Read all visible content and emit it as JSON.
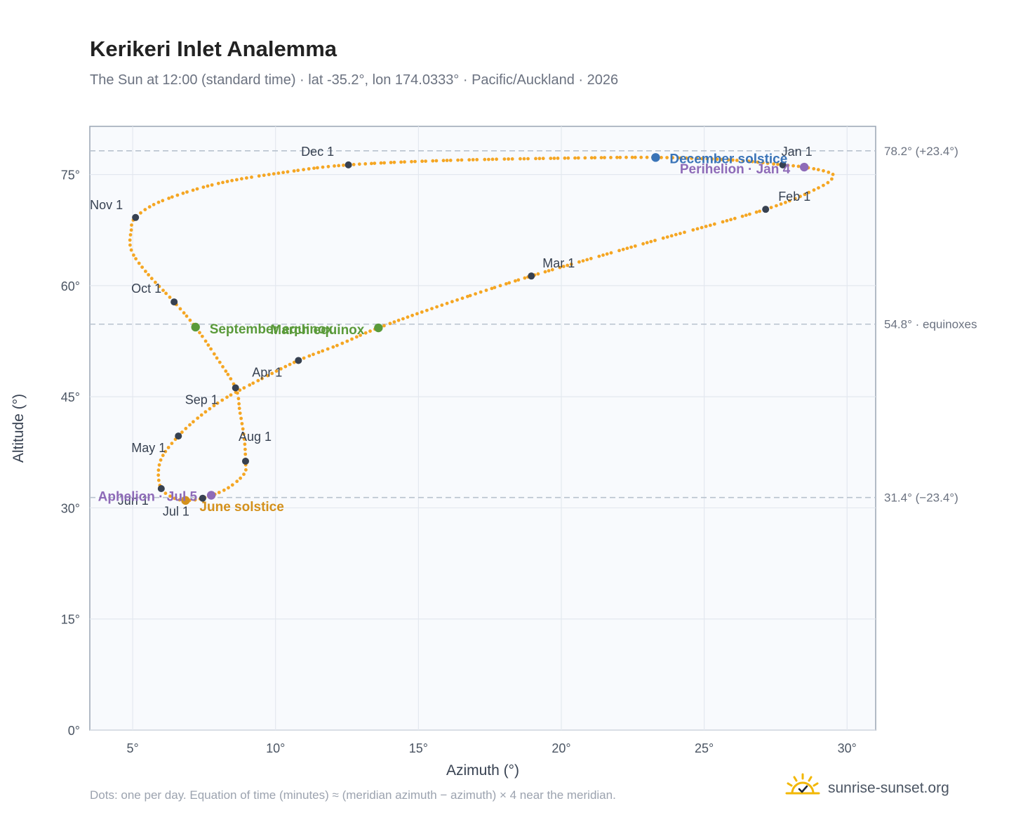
{
  "header": {
    "title": "Kerikeri Inlet Analemma",
    "subtitle": "The Sun at 12:00 (standard time) · lat -35.2°, lon 174.0333° · Pacific/Auckland · 2026"
  },
  "footer": {
    "note": "Dots: one per day. Equation of time (minutes) ≈ (meridian azimuth − azimuth) × 4 near the meridian.",
    "brand": "sunrise-sunset.org"
  },
  "colors": {
    "analemma": "#f5a623",
    "month_marker": "#374151",
    "equinox": "#5a9a3a",
    "june_solstice": "#d4911c",
    "december_solstice": "#3a74b8",
    "perihelion_aphelion": "#8e6bb8",
    "plot_bg": "#f8fafd",
    "grid": "#e3e8ef",
    "reference_line": "#b8c2ce"
  },
  "chart_data": {
    "type": "scatter",
    "xlabel": "Azimuth (°)",
    "ylabel": "Altitude (°)",
    "xlim": [
      3.5,
      31
    ],
    "ylim": [
      0,
      81.5
    ],
    "grid": true,
    "x_ticks": [
      5,
      10,
      15,
      20,
      25,
      30
    ],
    "x_tick_labels": [
      "5°",
      "10°",
      "15°",
      "20°",
      "25°",
      "30°"
    ],
    "y_ticks": [
      0,
      15,
      30,
      45,
      60,
      75
    ],
    "y_tick_labels": [
      "0°",
      "15°",
      "30°",
      "45°",
      "60°",
      "75°"
    ],
    "reference_lines": [
      {
        "y": 78.2,
        "label": "78.2° (+23.4°)"
      },
      {
        "y": 54.8,
        "label": "54.8° · equinoxes"
      },
      {
        "y": 31.4,
        "label": "31.4° (−23.4°)"
      }
    ],
    "month_markers": [
      {
        "label": "Jan 1",
        "x": 27.75,
        "y": 76.3
      },
      {
        "label": "Feb 1",
        "x": 27.15,
        "y": 70.3
      },
      {
        "label": "Mar 1",
        "x": 18.95,
        "y": 61.3
      },
      {
        "label": "Apr 1",
        "x": 10.8,
        "y": 49.9
      },
      {
        "label": "May 1",
        "x": 6.6,
        "y": 39.7
      },
      {
        "label": "Jun 1",
        "x": 6.0,
        "y": 32.6
      },
      {
        "label": "Jul 1",
        "x": 7.45,
        "y": 31.3
      },
      {
        "label": "Aug 1",
        "x": 8.95,
        "y": 36.3
      },
      {
        "label": "Sep 1",
        "x": 8.6,
        "y": 46.2
      },
      {
        "label": "Oct 1",
        "x": 6.45,
        "y": 57.8
      },
      {
        "label": "Nov 1",
        "x": 5.1,
        "y": 69.2
      },
      {
        "label": "Dec 1",
        "x": 12.55,
        "y": 76.3
      }
    ],
    "events": [
      {
        "label": "December solstice",
        "x": 23.3,
        "y": 77.3,
        "color": "#3a74b8"
      },
      {
        "label": "Perihelion · Jan 4",
        "x": 28.5,
        "y": 76.0,
        "color": "#8e6bb8"
      },
      {
        "label": "March equinox",
        "x": 13.6,
        "y": 54.3,
        "color": "#5a9a3a"
      },
      {
        "label": "September equinox",
        "x": 7.2,
        "y": 54.4,
        "color": "#5a9a3a"
      },
      {
        "label": "June solstice",
        "x": 6.85,
        "y": 31.0,
        "color": "#d4911c"
      },
      {
        "label": "Aphelion · Jul 5",
        "x": 7.75,
        "y": 31.7,
        "color": "#8e6bb8"
      }
    ],
    "analemma_path_keypoints": [
      [
        27.75,
        76.3
      ],
      [
        28.5,
        76.0
      ],
      [
        29.35,
        75.3
      ],
      [
        29.5,
        74.6
      ],
      [
        29.0,
        73.2
      ],
      [
        27.15,
        70.3
      ],
      [
        23.0,
        65.8
      ],
      [
        18.95,
        61.3
      ],
      [
        16.0,
        57.6
      ],
      [
        13.6,
        54.3
      ],
      [
        12.2,
        52.0
      ],
      [
        10.8,
        49.9
      ],
      [
        9.3,
        47.0
      ],
      [
        8.2,
        44.7
      ],
      [
        7.3,
        42.2
      ],
      [
        6.6,
        39.7
      ],
      [
        6.05,
        37.0
      ],
      [
        5.9,
        34.8
      ],
      [
        6.0,
        32.6
      ],
      [
        6.4,
        31.4
      ],
      [
        6.85,
        31.0
      ],
      [
        7.45,
        31.3
      ],
      [
        8.3,
        32.6
      ],
      [
        8.9,
        34.6
      ],
      [
        8.95,
        36.3
      ],
      [
        8.9,
        39.5
      ],
      [
        8.75,
        43.0
      ],
      [
        8.6,
        46.2
      ],
      [
        7.9,
        50.5
      ],
      [
        7.2,
        54.4
      ],
      [
        6.45,
        57.8
      ],
      [
        5.5,
        61.7
      ],
      [
        4.95,
        64.8
      ],
      [
        4.95,
        67.5
      ],
      [
        5.1,
        69.2
      ],
      [
        6.0,
        71.4
      ],
      [
        8.0,
        73.8
      ],
      [
        10.5,
        75.4
      ],
      [
        12.55,
        76.3
      ],
      [
        16.0,
        76.9
      ],
      [
        20.0,
        77.2
      ],
      [
        23.3,
        77.3
      ],
      [
        26.0,
        76.95
      ],
      [
        27.75,
        76.3
      ]
    ]
  }
}
